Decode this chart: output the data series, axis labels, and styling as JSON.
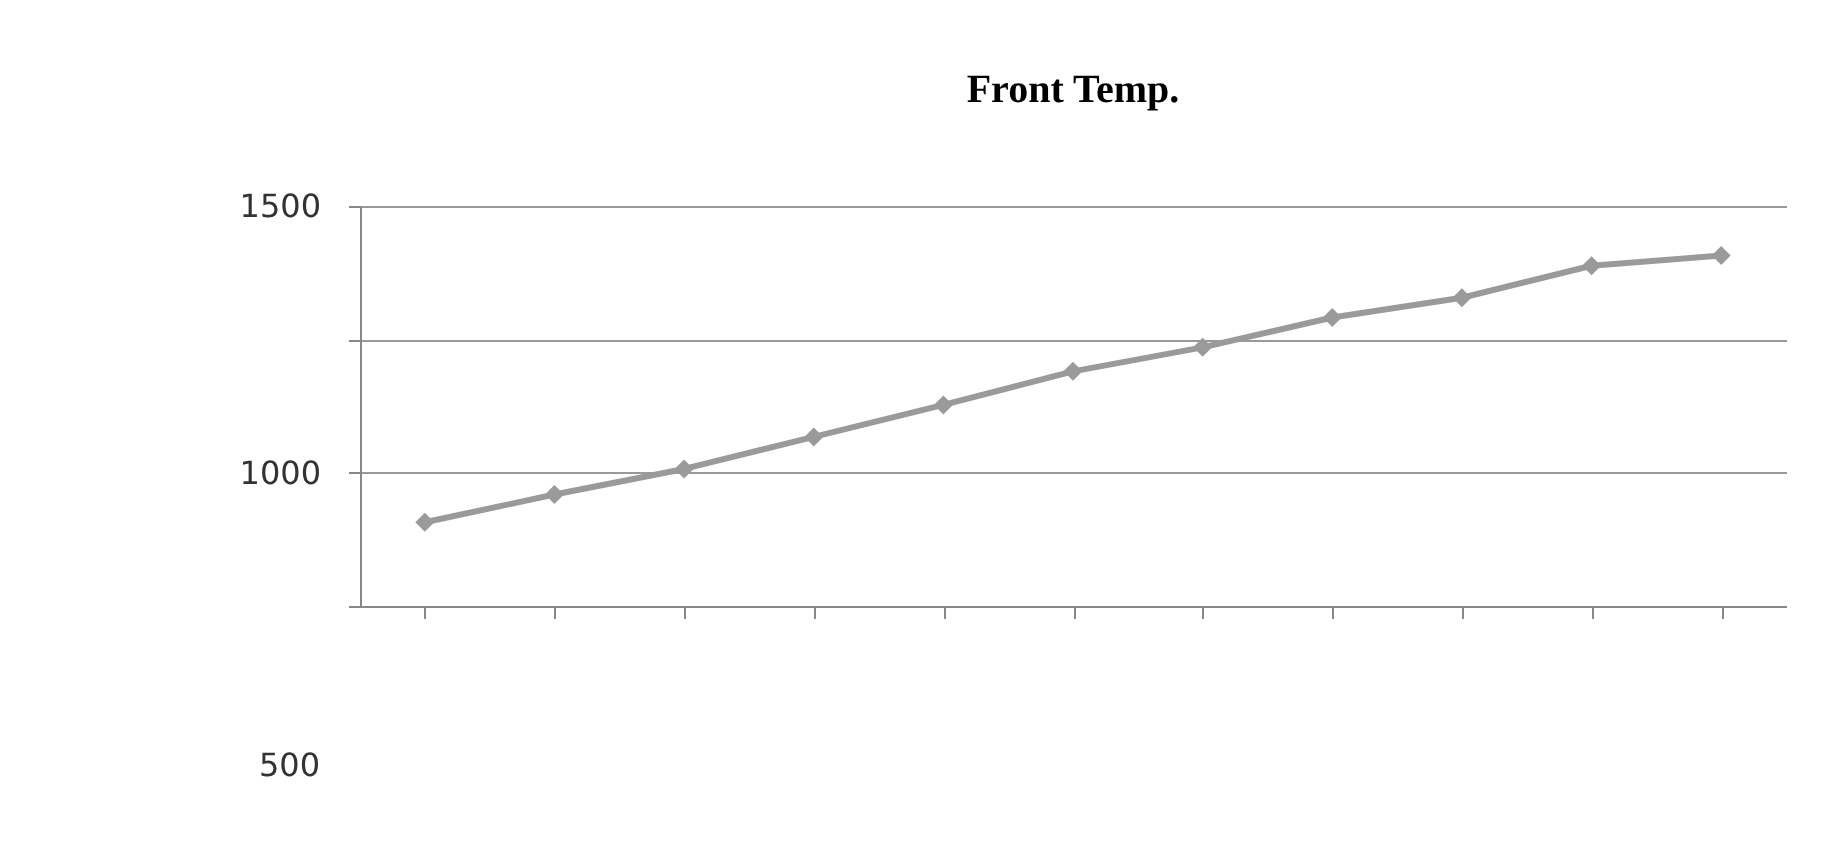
{
  "chart_data": {
    "type": "line",
    "title": "Front Temp.",
    "categories": [
      null,
      null,
      null,
      null,
      null,
      null,
      null,
      null,
      null,
      null,
      null
    ],
    "series": [
      {
        "color": "#9a9a9a",
        "values": [
          907,
          959,
          1007,
          1067,
          1127,
          1190,
          1235,
          1291,
          1328,
          1388,
          1407
        ]
      }
    ],
    "ylim": [
      750,
      1500
    ],
    "yticks": [
      1500,
      {
        "value": 1250,
        "label": null
      },
      1000,
      {
        "value": 750,
        "label": null
      }
    ],
    "annotations": [
      "500"
    ],
    "grid": "y",
    "marker": "diamond",
    "line_style": "solid",
    "tick_labels": "y"
  }
}
